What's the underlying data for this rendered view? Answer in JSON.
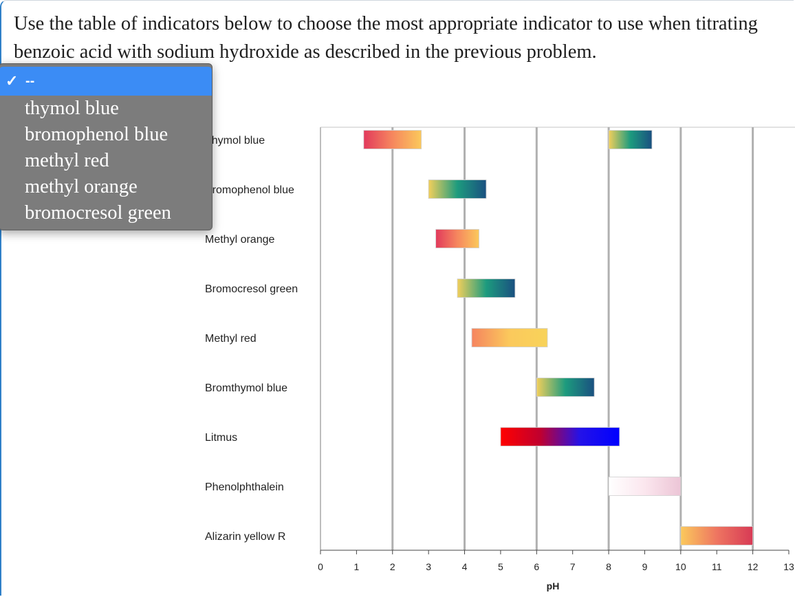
{
  "question": {
    "text": "Use the table of indicators below to choose the most appropriate indicator to use when titrating benzoic acid with sodium hydroxide as described in the previous problem."
  },
  "dropdown": {
    "selected": "--",
    "check_glyph": "✓",
    "options": [
      "--",
      "thymol blue",
      "bromophenol blue",
      "methyl red",
      "methyl orange",
      "bromocresol green"
    ]
  },
  "chart_data": {
    "type": "range-bar",
    "xlabel": "pH",
    "xlim": [
      0,
      13
    ],
    "x_ticks": [
      0,
      1,
      2,
      3,
      4,
      5,
      6,
      7,
      8,
      9,
      10,
      11,
      12,
      13
    ],
    "indicators": [
      {
        "name": "Thymol blue",
        "ranges": [
          {
            "from": 1.2,
            "to": 2.8,
            "colors": [
              "#e23a5c",
              "#f6875e",
              "#fbc95c"
            ]
          },
          {
            "from": 8.0,
            "to": 9.2,
            "colors": [
              "#f2cf5b",
              "#1d9b7e",
              "#1a5080"
            ]
          }
        ]
      },
      {
        "name": "Bromophenol blue",
        "ranges": [
          {
            "from": 3.0,
            "to": 4.6,
            "colors": [
              "#f2cf5b",
              "#1d9b7e",
              "#1a5080"
            ]
          }
        ]
      },
      {
        "name": "Methyl orange",
        "ranges": [
          {
            "from": 3.2,
            "to": 4.4,
            "colors": [
              "#e23a5c",
              "#f6875e",
              "#fbc95c"
            ]
          }
        ]
      },
      {
        "name": "Bromocresol green",
        "ranges": [
          {
            "from": 3.8,
            "to": 5.4,
            "colors": [
              "#f2cf5b",
              "#1d9b7e",
              "#1a5080"
            ]
          }
        ]
      },
      {
        "name": "Methyl red",
        "ranges": [
          {
            "from": 4.2,
            "to": 6.3,
            "colors": [
              "#f5845f",
              "#fbc95c",
              "#f8d35a"
            ]
          }
        ]
      },
      {
        "name": "Bromthymol blue",
        "ranges": [
          {
            "from": 6.0,
            "to": 7.6,
            "colors": [
              "#f2cf5b",
              "#1d9b7e",
              "#1a5080"
            ]
          }
        ]
      },
      {
        "name": "Litmus",
        "ranges": [
          {
            "from": 5.0,
            "to": 8.3,
            "colors": [
              "#ff0000",
              "#c0002f",
              "#2412e8",
              "#0000ff"
            ]
          }
        ]
      },
      {
        "name": "Phenolphthalein",
        "ranges": [
          {
            "from": 8.0,
            "to": 10.0,
            "colors": [
              "#ffffff",
              "#fbe6ee",
              "#ecc5d6"
            ]
          }
        ]
      },
      {
        "name": "Alizarin yellow R",
        "ranges": [
          {
            "from": 10.0,
            "to": 12.0,
            "colors": [
              "#fbc95c",
              "#ee7561",
              "#d73a55"
            ]
          }
        ]
      }
    ]
  }
}
